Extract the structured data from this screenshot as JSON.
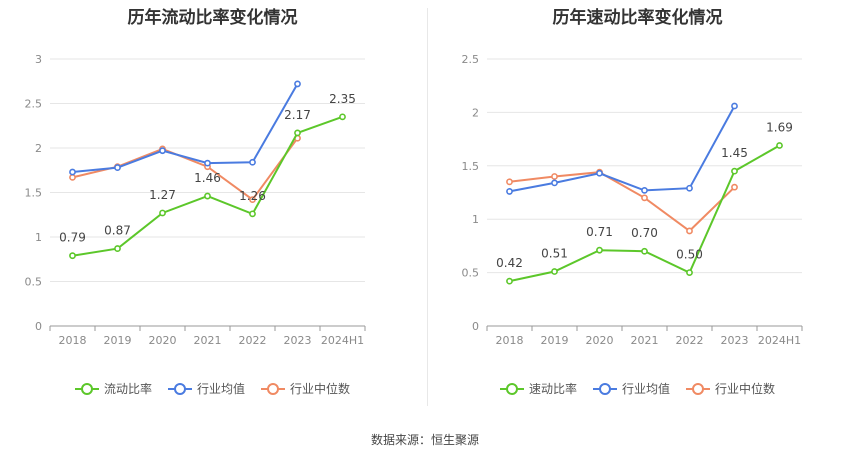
{
  "source": "数据来源：恒生聚源",
  "chart_data": [
    {
      "type": "line",
      "title": "历年流动比率变化情况",
      "categories": [
        "2018",
        "2019",
        "2020",
        "2021",
        "2022",
        "2023",
        "2024H1"
      ],
      "ylim": [
        0,
        3
      ],
      "yticks": [
        "0",
        "0.5",
        "1",
        "1.5",
        "2",
        "2.5",
        "3"
      ],
      "grid": true,
      "legend_position": "bottom",
      "series": [
        {
          "name": "流动比率",
          "color": "#5cc72a",
          "labeled": true,
          "values": [
            0.79,
            0.87,
            1.27,
            1.46,
            1.26,
            2.17,
            2.35
          ],
          "labels": [
            "0.79",
            "0.87",
            "1.27",
            "1.46",
            "1.26",
            "2.17",
            "2.35"
          ]
        },
        {
          "name": "行业均值",
          "color": "#4a7be0",
          "labeled": false,
          "values": [
            1.73,
            1.78,
            1.97,
            1.83,
            1.84,
            2.72,
            null
          ]
        },
        {
          "name": "行业中位数",
          "color": "#f08a63",
          "labeled": false,
          "values": [
            1.67,
            1.79,
            1.99,
            1.79,
            1.42,
            2.11,
            null
          ]
        }
      ]
    },
    {
      "type": "line",
      "title": "历年速动比率变化情况",
      "categories": [
        "2018",
        "2019",
        "2020",
        "2021",
        "2022",
        "2023",
        "2024H1"
      ],
      "ylim": [
        0,
        2.5
      ],
      "yticks": [
        "0",
        "0.5",
        "1",
        "1.5",
        "2",
        "2.5"
      ],
      "grid": true,
      "legend_position": "bottom",
      "series": [
        {
          "name": "速动比率",
          "color": "#5cc72a",
          "labeled": true,
          "values": [
            0.42,
            0.51,
            0.71,
            0.7,
            0.5,
            1.45,
            1.69
          ],
          "labels": [
            "0.42",
            "0.51",
            "0.71",
            "0.70",
            "0.50",
            "1.45",
            "1.69"
          ]
        },
        {
          "name": "行业均值",
          "color": "#4a7be0",
          "labeled": false,
          "values": [
            1.26,
            1.34,
            1.43,
            1.27,
            1.29,
            2.06,
            null
          ]
        },
        {
          "name": "行业中位数",
          "color": "#f08a63",
          "labeled": false,
          "values": [
            1.35,
            1.4,
            1.44,
            1.2,
            0.89,
            1.3,
            null
          ]
        }
      ]
    }
  ]
}
